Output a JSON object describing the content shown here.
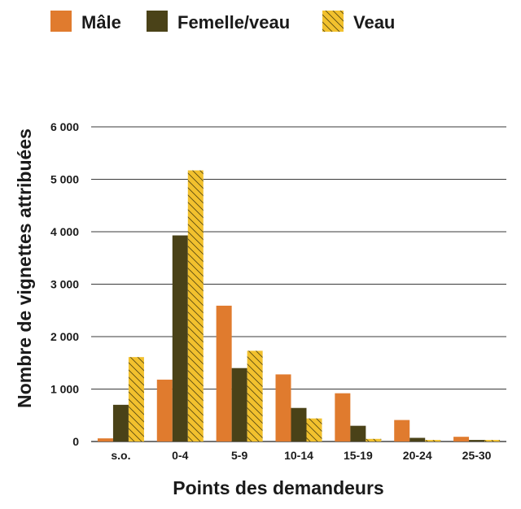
{
  "chart_data": {
    "type": "bar",
    "xlabel": "Points des demandeurs",
    "ylabel": "Nombre de vignettes attribuées",
    "categories": [
      "s.o.",
      "0-4",
      "5-9",
      "10-14",
      "15-19",
      "20-24",
      "25-30"
    ],
    "series": [
      {
        "name": "Mâle",
        "color": "#E07B2E",
        "pattern": "solid",
        "values": [
          60,
          1180,
          2590,
          1280,
          920,
          410,
          90
        ]
      },
      {
        "name": "Femelle/veau",
        "color": "#4A4218",
        "pattern": "solid",
        "values": [
          700,
          3930,
          1400,
          640,
          300,
          70,
          30
        ]
      },
      {
        "name": "Veau",
        "color": "#F2C12E",
        "pattern": "diagonal-hatch",
        "values": [
          1610,
          5170,
          1730,
          440,
          50,
          30,
          30
        ]
      }
    ],
    "ylim": [
      0,
      6000
    ],
    "yticks": [
      0,
      1000,
      2000,
      3000,
      4000,
      5000,
      6000
    ],
    "ytick_labels": [
      "0",
      "1 000",
      "2 000",
      "3 000",
      "4 000",
      "5 000",
      "6 000"
    ],
    "grid": true,
    "legend_position": "top-left"
  }
}
